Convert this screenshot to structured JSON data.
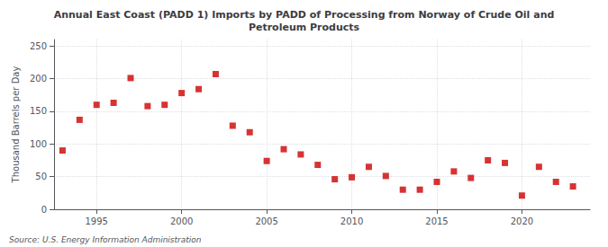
{
  "chart_data": {
    "type": "scatter",
    "title": "Annual East Coast (PADD 1) Imports by PADD of Processing from Norway of Crude Oil and\nPetroleum Products",
    "ylabel": "Thousand Barrels per Day",
    "annotation": "Source: U.S. Energy Information Administration",
    "x": [
      1993,
      1994,
      1995,
      1996,
      1997,
      1998,
      1999,
      2000,
      2001,
      2002,
      2003,
      2004,
      2005,
      2006,
      2007,
      2008,
      2009,
      2010,
      2011,
      2012,
      2013,
      2014,
      2015,
      2016,
      2017,
      2018,
      2019,
      2020,
      2021,
      2022,
      2023
    ],
    "values": [
      90,
      137,
      160,
      163,
      201,
      158,
      160,
      178,
      184,
      207,
      128,
      118,
      74,
      92,
      84,
      68,
      46,
      49,
      65,
      51,
      30,
      30,
      42,
      58,
      48,
      75,
      71,
      21,
      65,
      42,
      35
    ],
    "color": "#cc0000",
    "marker": "square",
    "xlim": [
      1992.5,
      2024
    ],
    "xticks": [
      1995,
      2000,
      2005,
      2010,
      2015,
      2020
    ],
    "ylim": [
      0,
      260
    ],
    "yticks": [
      0,
      50,
      100,
      150,
      200,
      250
    ],
    "grid": true
  }
}
